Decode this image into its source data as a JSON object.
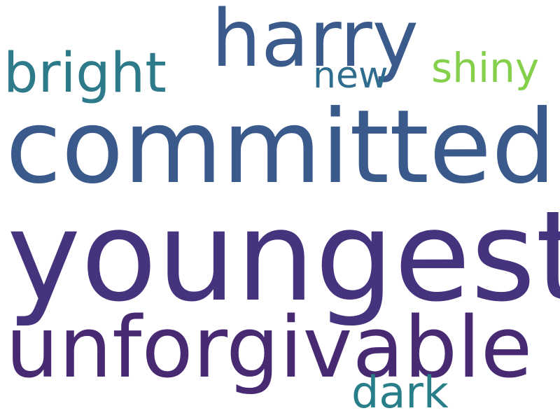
{
  "words": {
    "youngest": {
      "text": "youngest",
      "color": "#46337e"
    },
    "committed": {
      "text": "committed",
      "color": "#3b5a8c"
    },
    "unforgivable": {
      "text": "unforgivable",
      "color": "#482a72"
    },
    "harry": {
      "text": "harry",
      "color": "#3a5b8b"
    },
    "bright": {
      "text": "bright",
      "color": "#2c7a8a"
    },
    "shiny": {
      "text": "shiny",
      "color": "#84d04b"
    },
    "new": {
      "text": "new",
      "color": "#2f6d8e"
    },
    "dark": {
      "text": "dark",
      "color": "#287f8a"
    }
  },
  "background": "#ffffff"
}
